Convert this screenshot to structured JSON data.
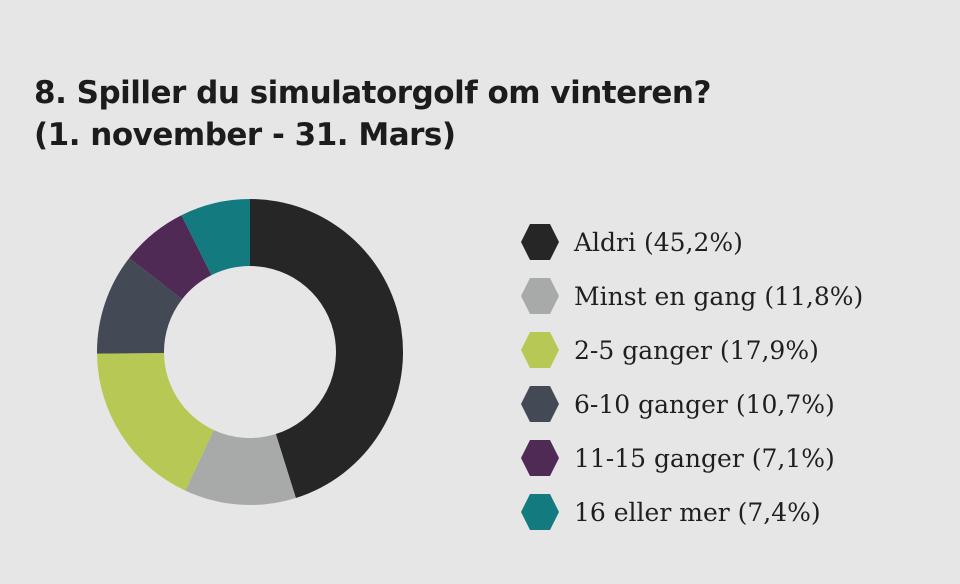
{
  "title": {
    "line1": "8. Spiller du simulatorgolf om vinteren?",
    "line2": "(1. november - 31. Mars)"
  },
  "chart_data": {
    "type": "pie",
    "variant": "donut",
    "legend_position": "right",
    "series": [
      {
        "name": "Aldri (45,2%)",
        "value": 45.2,
        "color": "#262626"
      },
      {
        "name": "Minst en gang (11,8%)",
        "value": 11.8,
        "color": "#a8aaaa"
      },
      {
        "name": "2-5 ganger (17,9%)",
        "value": 17.9,
        "color": "#b8c854"
      },
      {
        "name": "6-10 ganger (10,7%)",
        "value": 10.7,
        "color": "#434a55"
      },
      {
        "name": "11-15 ganger (7,1%)",
        "value": 7.1,
        "color": "#4f2a55"
      },
      {
        "name": "16 eller mer (7,4%)",
        "value": 7.4,
        "color": "#137a80"
      }
    ]
  }
}
